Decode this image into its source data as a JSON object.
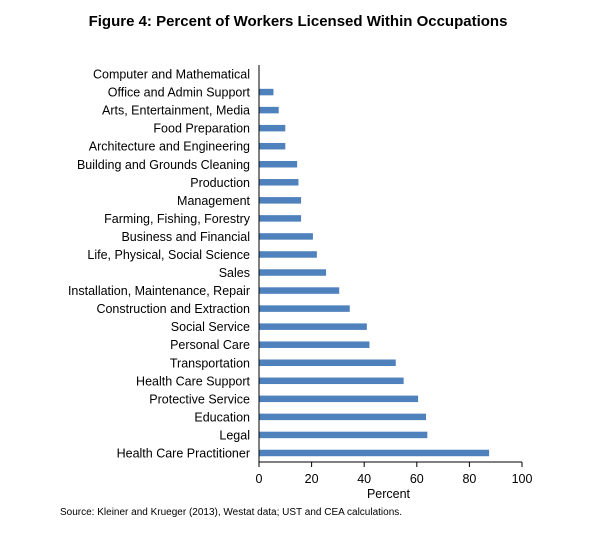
{
  "title": "Figure 4: Percent of Workers Licensed Within Occupations",
  "source": "Source: Kleiner and Krueger (2013), Westat data; UST and CEA calculations.",
  "colors": {
    "bar": "#4f81bd",
    "axis": "#000000"
  },
  "chart_data": {
    "type": "bar",
    "orientation": "horizontal",
    "title": "Figure 4: Percent of Workers Licensed Within Occupations",
    "xlabel": "Percent",
    "ylabel": "",
    "xlim": [
      0,
      100
    ],
    "xticks": [
      "0",
      "20",
      "40",
      "60",
      "80",
      "100"
    ],
    "grid": false,
    "legend": "none",
    "categories": [
      "Computer and Mathematical",
      "Office and Admin Support",
      "Arts, Entertainment, Media",
      "Food Preparation",
      "Architecture and Engineering",
      "Building and Grounds Cleaning",
      "Production",
      "Management",
      "Farming, Fishing, Forestry",
      "Business and Financial",
      "Life, Physical, Social Science",
      "Sales",
      "Installation, Maintenance, Repair",
      "Construction and Extraction",
      "Social Service",
      "Personal Care",
      "Transportation",
      "Health Care Support",
      "Protective Service",
      "Education",
      "Legal",
      "Health Care Practitioner"
    ],
    "values": [
      0,
      5.5,
      7.5,
      10,
      10,
      14.5,
      15,
      16,
      16,
      20.5,
      22,
      25.5,
      30.5,
      34.5,
      41,
      42,
      52,
      55,
      60.5,
      63.5,
      64,
      87.5
    ]
  }
}
